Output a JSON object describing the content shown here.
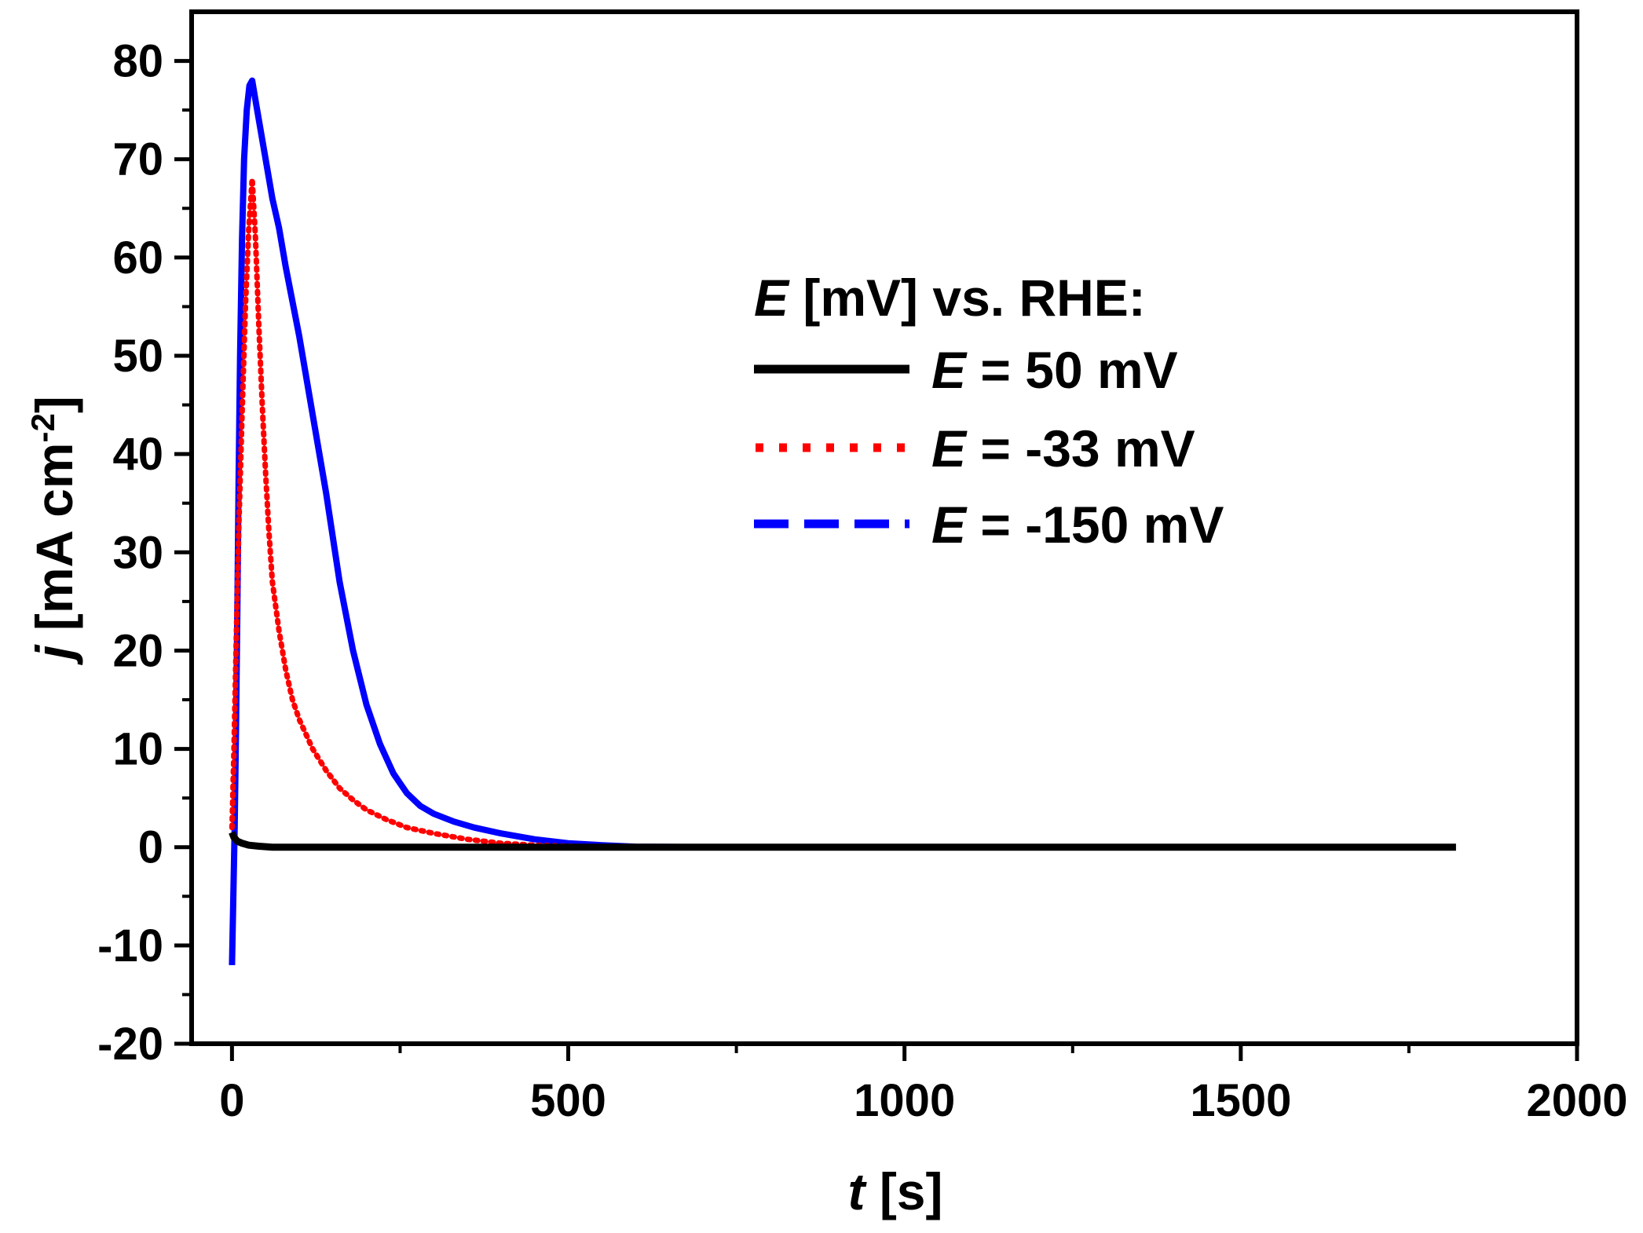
{
  "chart_data": {
    "type": "line",
    "title": "",
    "xlabel": {
      "symbol": "t",
      "unit": " [s]"
    },
    "ylabel": {
      "symbol": "j",
      "unit": " [mA cm",
      "sup": "-2",
      "close": "]"
    },
    "xlim": [
      -60,
      2000
    ],
    "ylim": [
      -20,
      85
    ],
    "xticks": [
      0,
      500,
      1000,
      1500,
      2000
    ],
    "yticks": [
      -20,
      -10,
      0,
      10,
      20,
      30,
      40,
      50,
      60,
      70,
      80
    ],
    "xtick_labels": [
      "0",
      "500",
      "1000",
      "1500",
      "2000"
    ],
    "ytick_labels": [
      "-20",
      "-10",
      "0",
      "10",
      "20",
      "30",
      "40",
      "50",
      "60",
      "70",
      "80"
    ],
    "grid": false,
    "legend": {
      "position": "upper-right",
      "title_symbol": "E",
      "title_rest": " [mV] vs. RHE:",
      "entries": [
        {
          "symbol": "E",
          "text": " = 50 mV"
        },
        {
          "symbol": "E",
          "text": " = -33 mV"
        },
        {
          "symbol": "E",
          "text": " = -150 mV"
        }
      ]
    },
    "series": [
      {
        "name": "E = 50 mV",
        "color": "#000000",
        "style": "solid",
        "x": [
          0,
          3,
          8,
          15,
          25,
          40,
          60,
          100,
          200,
          400,
          700,
          1000,
          1400,
          1820
        ],
        "y": [
          1.5,
          1.0,
          0.6,
          0.4,
          0.2,
          0.1,
          0.0,
          0.0,
          0.0,
          0.0,
          0.0,
          0.0,
          0.0,
          0.0
        ]
      },
      {
        "name": "E = -33 mV",
        "color": "#ff0000",
        "style": "dotted",
        "x": [
          0,
          3,
          6,
          10,
          15,
          20,
          25,
          30,
          35,
          40,
          45,
          50,
          55,
          60,
          70,
          80,
          90,
          100,
          120,
          140,
          160,
          180,
          200,
          230,
          260,
          300,
          350,
          400,
          450,
          500,
          550,
          600
        ],
        "y": [
          2,
          10,
          20,
          32,
          44,
          55,
          63,
          68,
          62,
          53,
          45,
          38,
          32,
          27,
          22,
          18,
          15,
          13,
          10,
          7.8,
          6,
          4.8,
          3.8,
          2.8,
          2.0,
          1.4,
          0.8,
          0.4,
          0.2,
          0.1,
          0.0,
          0.0
        ]
      },
      {
        "name": "E = -150 mV",
        "color": "#0000ff",
        "style": "solid-dashed-start",
        "x": [
          0,
          2,
          4,
          6,
          8,
          10,
          12,
          15,
          18,
          22,
          26,
          30,
          35,
          40,
          45,
          50,
          55,
          60,
          70,
          80,
          100,
          120,
          140,
          160,
          180,
          200,
          220,
          240,
          260,
          280,
          300,
          330,
          360,
          400,
          450,
          500,
          550,
          600,
          700,
          800,
          1000,
          1220
        ],
        "y": [
          -12,
          -5,
          2,
          12,
          24,
          38,
          50,
          62,
          70,
          75,
          77.5,
          78,
          76,
          74,
          72,
          70,
          68,
          66,
          63,
          59,
          52,
          44,
          36,
          27,
          20,
          14.5,
          10.5,
          7.5,
          5.5,
          4.2,
          3.4,
          2.6,
          2.0,
          1.4,
          0.8,
          0.4,
          0.2,
          0.05,
          0.0,
          0.0,
          0.0,
          0.0
        ]
      }
    ]
  }
}
